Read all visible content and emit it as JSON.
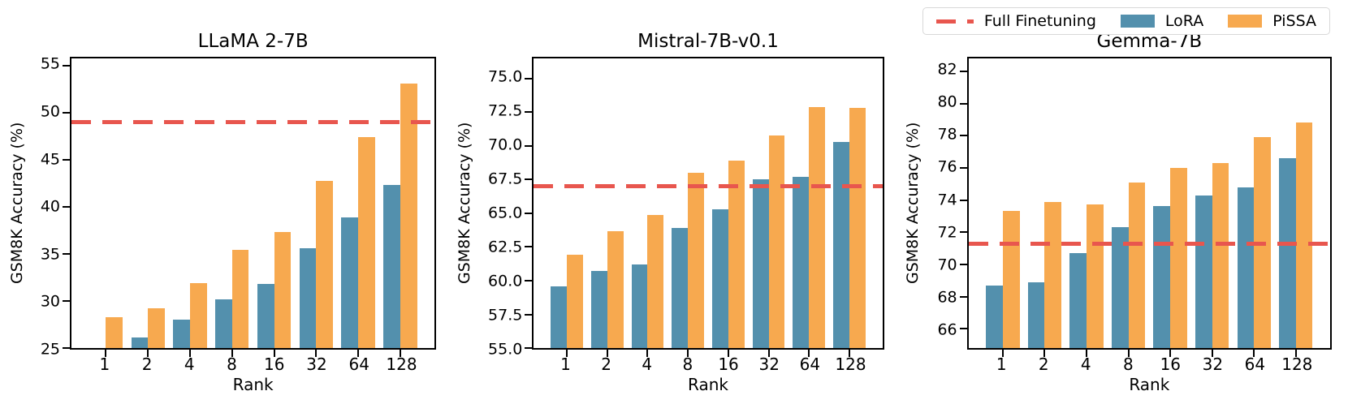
{
  "colors": {
    "full_finetuning": "#e8564e",
    "lora": "#5390ad",
    "pissa": "#f7a94f",
    "axis": "#000000",
    "legend_border": "#d8d8d8"
  },
  "legend": {
    "position": "top-right",
    "items": [
      {
        "label": "Full Finetuning",
        "swatch": "dashed-line",
        "color": "#e8564e"
      },
      {
        "label": "LoRA",
        "swatch": "rect",
        "color": "#5390ad"
      },
      {
        "label": "PiSSA",
        "swatch": "rect",
        "color": "#f7a94f"
      }
    ]
  },
  "chart_data": [
    {
      "type": "bar",
      "title": "LLaMA 2-7B",
      "xlabel": "Rank",
      "ylabel": "GSM8K Accuracy (%)",
      "grid": false,
      "categories": [
        "1",
        "2",
        "4",
        "8",
        "16",
        "32",
        "64",
        "128"
      ],
      "series": [
        {
          "name": "LoRA",
          "values": [
            24.9,
            26.1,
            28.0,
            30.2,
            31.8,
            35.6,
            38.9,
            42.3
          ]
        },
        {
          "name": "PiSSA",
          "values": [
            28.3,
            29.2,
            31.9,
            35.4,
            37.3,
            42.8,
            47.4,
            53.1
          ]
        }
      ],
      "full_finetuning": 49.0,
      "ylim": [
        25,
        55.8
      ],
      "yticks": [
        25,
        30,
        35,
        40,
        45,
        50,
        55
      ],
      "ytick_labels": [
        "25",
        "30",
        "35",
        "40",
        "45",
        "50",
        "55"
      ]
    },
    {
      "type": "bar",
      "title": "Mistral-7B-v0.1",
      "xlabel": "Rank",
      "ylabel": "GSM8K Accuracy (%)",
      "grid": false,
      "categories": [
        "1",
        "2",
        "4",
        "8",
        "16",
        "32",
        "64",
        "128"
      ],
      "series": [
        {
          "name": "LoRA",
          "values": [
            59.6,
            60.7,
            61.2,
            63.9,
            65.3,
            67.5,
            67.7,
            70.3
          ]
        },
        {
          "name": "PiSSA",
          "values": [
            61.9,
            63.7,
            64.9,
            68.0,
            68.9,
            70.8,
            72.9,
            72.8
          ]
        }
      ],
      "full_finetuning": 67.0,
      "ylim": [
        55,
        76.5
      ],
      "yticks": [
        55,
        57.5,
        60,
        62.5,
        65,
        67.5,
        70,
        72.5,
        75
      ],
      "ytick_labels": [
        "55.0",
        "57.5",
        "60.0",
        "62.5",
        "65.0",
        "67.5",
        "70.0",
        "72.5",
        "75.0"
      ]
    },
    {
      "type": "bar",
      "title": "Gemma-7B",
      "xlabel": "Rank",
      "ylabel": "GSM8K Accuracy (%)",
      "grid": false,
      "categories": [
        "1",
        "2",
        "4",
        "8",
        "16",
        "32",
        "64",
        "128"
      ],
      "series": [
        {
          "name": "LoRA",
          "values": [
            68.7,
            68.9,
            70.7,
            72.3,
            73.6,
            74.3,
            74.8,
            76.6
          ]
        },
        {
          "name": "PiSSA",
          "values": [
            73.3,
            73.9,
            73.7,
            75.1,
            76.0,
            76.3,
            77.9,
            78.8
          ]
        }
      ],
      "full_finetuning": 71.3,
      "ylim": [
        64.8,
        82.8
      ],
      "yticks": [
        66,
        68,
        70,
        72,
        74,
        76,
        78,
        80,
        82
      ],
      "ytick_labels": [
        "66",
        "68",
        "70",
        "72",
        "74",
        "76",
        "78",
        "80",
        "82"
      ]
    }
  ],
  "bar_layout": {
    "group_margin": 0.82,
    "bar_width": 0.4
  }
}
